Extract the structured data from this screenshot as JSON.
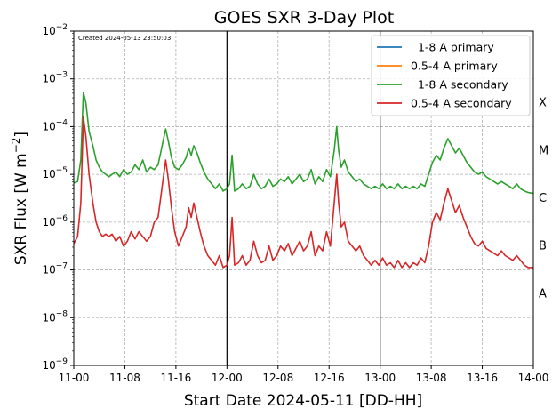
{
  "chart_data": {
    "type": "line",
    "title": "GOES SXR 3-Day Plot",
    "annotation": "Created 2024-05-13 23:50:03",
    "xlabel": "Start Date 2024-05-11 [DD-HH]",
    "ylabel_main": "SXR Flux [W m",
    "ylabel_exp": "−2",
    "ylabel_close": "]",
    "x_unit": "hours since 11-00",
    "x_range": [
      0,
      72
    ],
    "x_ticks": [
      {
        "v": 0,
        "label": "11-00"
      },
      {
        "v": 8,
        "label": "11-08"
      },
      {
        "v": 16,
        "label": "11-16"
      },
      {
        "v": 24,
        "label": "12-00"
      },
      {
        "v": 32,
        "label": "12-08"
      },
      {
        "v": 40,
        "label": "12-16"
      },
      {
        "v": 48,
        "label": "13-00"
      },
      {
        "v": 56,
        "label": "13-08"
      },
      {
        "v": 64,
        "label": "13-16"
      },
      {
        "v": 72,
        "label": "14-00"
      }
    ],
    "y_scale": "log",
    "y_range_exp": [
      -9,
      -2
    ],
    "y_ticks": [
      -9,
      -8,
      -7,
      -6,
      -5,
      -4,
      -3,
      -2
    ],
    "day_lines": [
      24,
      48
    ],
    "flare_classes": [
      {
        "label": "A",
        "exp": -7.5
      },
      {
        "label": "B",
        "exp": -6.5
      },
      {
        "label": "C",
        "exp": -5.5
      },
      {
        "label": "M",
        "exp": -4.5
      },
      {
        "label": "X",
        "exp": -3.5
      }
    ],
    "grid": true,
    "legend_position": "top-right",
    "series": [
      {
        "name": "  1-8 A primary",
        "color": "#1f77b4",
        "points": []
      },
      {
        "name": "0.5-4 A primary",
        "color": "#ff7f0e",
        "points": []
      },
      {
        "name": "  1-8 A secondary",
        "color": "#2ca02c",
        "points": [
          [
            0,
            -5.18
          ],
          [
            0.6,
            -5.15
          ],
          [
            1.1,
            -4.7
          ],
          [
            1.5,
            -3.28
          ],
          [
            1.9,
            -3.5
          ],
          [
            2.4,
            -4.1
          ],
          [
            3.0,
            -4.4
          ],
          [
            3.5,
            -4.7
          ],
          [
            4.0,
            -4.85
          ],
          [
            4.5,
            -4.95
          ],
          [
            5.0,
            -5.0
          ],
          [
            5.5,
            -5.05
          ],
          [
            6.0,
            -5.0
          ],
          [
            6.6,
            -4.95
          ],
          [
            7.2,
            -5.05
          ],
          [
            7.8,
            -4.9
          ],
          [
            8.4,
            -5.0
          ],
          [
            9.0,
            -4.95
          ],
          [
            9.6,
            -4.8
          ],
          [
            10.2,
            -4.9
          ],
          [
            10.8,
            -4.7
          ],
          [
            11.4,
            -4.95
          ],
          [
            12.0,
            -4.85
          ],
          [
            12.6,
            -4.9
          ],
          [
            13.2,
            -4.8
          ],
          [
            13.6,
            -4.55
          ],
          [
            14.0,
            -4.3
          ],
          [
            14.4,
            -4.05
          ],
          [
            14.8,
            -4.3
          ],
          [
            15.3,
            -4.65
          ],
          [
            15.8,
            -4.85
          ],
          [
            16.4,
            -4.9
          ],
          [
            17.0,
            -4.8
          ],
          [
            17.6,
            -4.65
          ],
          [
            18.0,
            -4.45
          ],
          [
            18.4,
            -4.6
          ],
          [
            18.8,
            -4.4
          ],
          [
            19.3,
            -4.55
          ],
          [
            19.8,
            -4.75
          ],
          [
            20.4,
            -4.95
          ],
          [
            21.0,
            -5.1
          ],
          [
            21.6,
            -5.2
          ],
          [
            22.2,
            -5.3
          ],
          [
            22.8,
            -5.2
          ],
          [
            23.4,
            -5.35
          ],
          [
            24.0,
            -5.3
          ],
          [
            24.4,
            -5.2
          ],
          [
            24.8,
            -4.6
          ],
          [
            25.2,
            -5.35
          ],
          [
            25.8,
            -5.3
          ],
          [
            26.4,
            -5.2
          ],
          [
            27.0,
            -5.3
          ],
          [
            27.6,
            -5.25
          ],
          [
            28.2,
            -5.0
          ],
          [
            28.8,
            -5.2
          ],
          [
            29.4,
            -5.3
          ],
          [
            30.0,
            -5.25
          ],
          [
            30.6,
            -5.1
          ],
          [
            31.2,
            -5.25
          ],
          [
            31.8,
            -5.2
          ],
          [
            32.4,
            -5.1
          ],
          [
            33.0,
            -5.15
          ],
          [
            33.6,
            -5.05
          ],
          [
            34.2,
            -5.2
          ],
          [
            34.8,
            -5.1
          ],
          [
            35.4,
            -5.0
          ],
          [
            36.0,
            -5.15
          ],
          [
            36.6,
            -5.1
          ],
          [
            37.2,
            -4.9
          ],
          [
            37.8,
            -5.2
          ],
          [
            38.4,
            -5.05
          ],
          [
            39.0,
            -5.15
          ],
          [
            39.6,
            -4.9
          ],
          [
            40.2,
            -5.05
          ],
          [
            40.8,
            -4.5
          ],
          [
            41.2,
            -4.0
          ],
          [
            41.5,
            -4.5
          ],
          [
            41.9,
            -4.85
          ],
          [
            42.4,
            -4.7
          ],
          [
            43.0,
            -4.95
          ],
          [
            43.6,
            -5.05
          ],
          [
            44.2,
            -5.15
          ],
          [
            44.8,
            -5.1
          ],
          [
            45.4,
            -5.2
          ],
          [
            46.0,
            -5.25
          ],
          [
            46.6,
            -5.3
          ],
          [
            47.2,
            -5.25
          ],
          [
            47.8,
            -5.3
          ],
          [
            48.4,
            -5.2
          ],
          [
            49.0,
            -5.3
          ],
          [
            49.6,
            -5.25
          ],
          [
            50.2,
            -5.3
          ],
          [
            50.8,
            -5.2
          ],
          [
            51.4,
            -5.3
          ],
          [
            52.0,
            -5.25
          ],
          [
            52.6,
            -5.3
          ],
          [
            53.2,
            -5.25
          ],
          [
            53.8,
            -5.3
          ],
          [
            54.4,
            -5.2
          ],
          [
            55.0,
            -5.25
          ],
          [
            55.6,
            -5.0
          ],
          [
            56.2,
            -4.75
          ],
          [
            56.8,
            -4.6
          ],
          [
            57.4,
            -4.7
          ],
          [
            58.0,
            -4.45
          ],
          [
            58.6,
            -4.25
          ],
          [
            59.2,
            -4.4
          ],
          [
            59.8,
            -4.55
          ],
          [
            60.4,
            -4.45
          ],
          [
            61.0,
            -4.6
          ],
          [
            61.6,
            -4.75
          ],
          [
            62.2,
            -4.85
          ],
          [
            62.8,
            -4.95
          ],
          [
            63.4,
            -5.0
          ],
          [
            64.0,
            -4.95
          ],
          [
            64.6,
            -5.05
          ],
          [
            65.2,
            -5.1
          ],
          [
            65.8,
            -5.15
          ],
          [
            66.4,
            -5.2
          ],
          [
            67.0,
            -5.15
          ],
          [
            67.6,
            -5.2
          ],
          [
            68.2,
            -5.25
          ],
          [
            68.8,
            -5.3
          ],
          [
            69.4,
            -5.2
          ],
          [
            70.0,
            -5.3
          ],
          [
            70.6,
            -5.35
          ],
          [
            71.2,
            -5.38
          ],
          [
            72,
            -5.4
          ]
        ]
      },
      {
        "name": "0.5-4 A secondary",
        "color": "#d62728",
        "points": [
          [
            0,
            -6.45
          ],
          [
            0.6,
            -6.3
          ],
          [
            1.1,
            -5.6
          ],
          [
            1.5,
            -3.8
          ],
          [
            1.9,
            -4.2
          ],
          [
            2.4,
            -5.0
          ],
          [
            3.0,
            -5.6
          ],
          [
            3.5,
            -6.0
          ],
          [
            4.0,
            -6.2
          ],
          [
            4.5,
            -6.3
          ],
          [
            5.0,
            -6.25
          ],
          [
            5.5,
            -6.3
          ],
          [
            6.0,
            -6.25
          ],
          [
            6.6,
            -6.4
          ],
          [
            7.2,
            -6.3
          ],
          [
            7.8,
            -6.5
          ],
          [
            8.4,
            -6.4
          ],
          [
            9.0,
            -6.2
          ],
          [
            9.6,
            -6.35
          ],
          [
            10.2,
            -6.2
          ],
          [
            10.8,
            -6.3
          ],
          [
            11.4,
            -6.4
          ],
          [
            12.0,
            -6.3
          ],
          [
            12.6,
            -6.0
          ],
          [
            13.2,
            -5.9
          ],
          [
            13.6,
            -5.5
          ],
          [
            14.0,
            -5.1
          ],
          [
            14.4,
            -4.7
          ],
          [
            14.8,
            -5.1
          ],
          [
            15.3,
            -5.7
          ],
          [
            15.8,
            -6.2
          ],
          [
            16.4,
            -6.5
          ],
          [
            17.0,
            -6.3
          ],
          [
            17.6,
            -6.1
          ],
          [
            18.0,
            -5.7
          ],
          [
            18.4,
            -5.9
          ],
          [
            18.8,
            -5.6
          ],
          [
            19.3,
            -5.9
          ],
          [
            19.8,
            -6.2
          ],
          [
            20.4,
            -6.5
          ],
          [
            21.0,
            -6.7
          ],
          [
            21.6,
            -6.8
          ],
          [
            22.2,
            -6.9
          ],
          [
            22.8,
            -6.7
          ],
          [
            23.4,
            -6.95
          ],
          [
            24.0,
            -6.9
          ],
          [
            24.4,
            -6.7
          ],
          [
            24.8,
            -5.9
          ],
          [
            25.2,
            -6.9
          ],
          [
            25.8,
            -6.85
          ],
          [
            26.4,
            -6.7
          ],
          [
            27.0,
            -6.9
          ],
          [
            27.6,
            -6.8
          ],
          [
            28.2,
            -6.4
          ],
          [
            28.8,
            -6.7
          ],
          [
            29.4,
            -6.85
          ],
          [
            30.0,
            -6.8
          ],
          [
            30.6,
            -6.5
          ],
          [
            31.2,
            -6.8
          ],
          [
            31.8,
            -6.7
          ],
          [
            32.4,
            -6.5
          ],
          [
            33.0,
            -6.6
          ],
          [
            33.6,
            -6.45
          ],
          [
            34.2,
            -6.7
          ],
          [
            34.8,
            -6.55
          ],
          [
            35.4,
            -6.4
          ],
          [
            36.0,
            -6.6
          ],
          [
            36.6,
            -6.5
          ],
          [
            37.2,
            -6.2
          ],
          [
            37.8,
            -6.7
          ],
          [
            38.4,
            -6.5
          ],
          [
            39.0,
            -6.6
          ],
          [
            39.6,
            -6.2
          ],
          [
            40.2,
            -6.5
          ],
          [
            40.8,
            -5.6
          ],
          [
            41.2,
            -5.0
          ],
          [
            41.5,
            -5.6
          ],
          [
            41.9,
            -6.1
          ],
          [
            42.4,
            -6.0
          ],
          [
            43.0,
            -6.4
          ],
          [
            43.6,
            -6.5
          ],
          [
            44.2,
            -6.6
          ],
          [
            44.8,
            -6.5
          ],
          [
            45.4,
            -6.7
          ],
          [
            46.0,
            -6.8
          ],
          [
            46.6,
            -6.9
          ],
          [
            47.2,
            -6.8
          ],
          [
            47.8,
            -6.9
          ],
          [
            48.4,
            -6.75
          ],
          [
            49.0,
            -6.9
          ],
          [
            49.6,
            -6.85
          ],
          [
            50.2,
            -6.95
          ],
          [
            50.8,
            -6.8
          ],
          [
            51.4,
            -6.95
          ],
          [
            52.0,
            -6.85
          ],
          [
            52.6,
            -6.95
          ],
          [
            53.2,
            -6.85
          ],
          [
            53.8,
            -6.9
          ],
          [
            54.4,
            -6.75
          ],
          [
            55.0,
            -6.85
          ],
          [
            55.6,
            -6.5
          ],
          [
            56.2,
            -6.0
          ],
          [
            56.8,
            -5.8
          ],
          [
            57.4,
            -5.95
          ],
          [
            58.0,
            -5.6
          ],
          [
            58.6,
            -5.3
          ],
          [
            59.2,
            -5.55
          ],
          [
            59.8,
            -5.8
          ],
          [
            60.4,
            -5.65
          ],
          [
            61.0,
            -5.9
          ],
          [
            61.6,
            -6.1
          ],
          [
            62.2,
            -6.3
          ],
          [
            62.8,
            -6.45
          ],
          [
            63.4,
            -6.5
          ],
          [
            64.0,
            -6.4
          ],
          [
            64.6,
            -6.55
          ],
          [
            65.2,
            -6.6
          ],
          [
            65.8,
            -6.65
          ],
          [
            66.4,
            -6.7
          ],
          [
            67.0,
            -6.6
          ],
          [
            67.6,
            -6.7
          ],
          [
            68.2,
            -6.75
          ],
          [
            68.8,
            -6.8
          ],
          [
            69.4,
            -6.7
          ],
          [
            70.0,
            -6.8
          ],
          [
            70.6,
            -6.9
          ],
          [
            71.2,
            -6.95
          ],
          [
            72,
            -6.95
          ]
        ]
      }
    ]
  }
}
